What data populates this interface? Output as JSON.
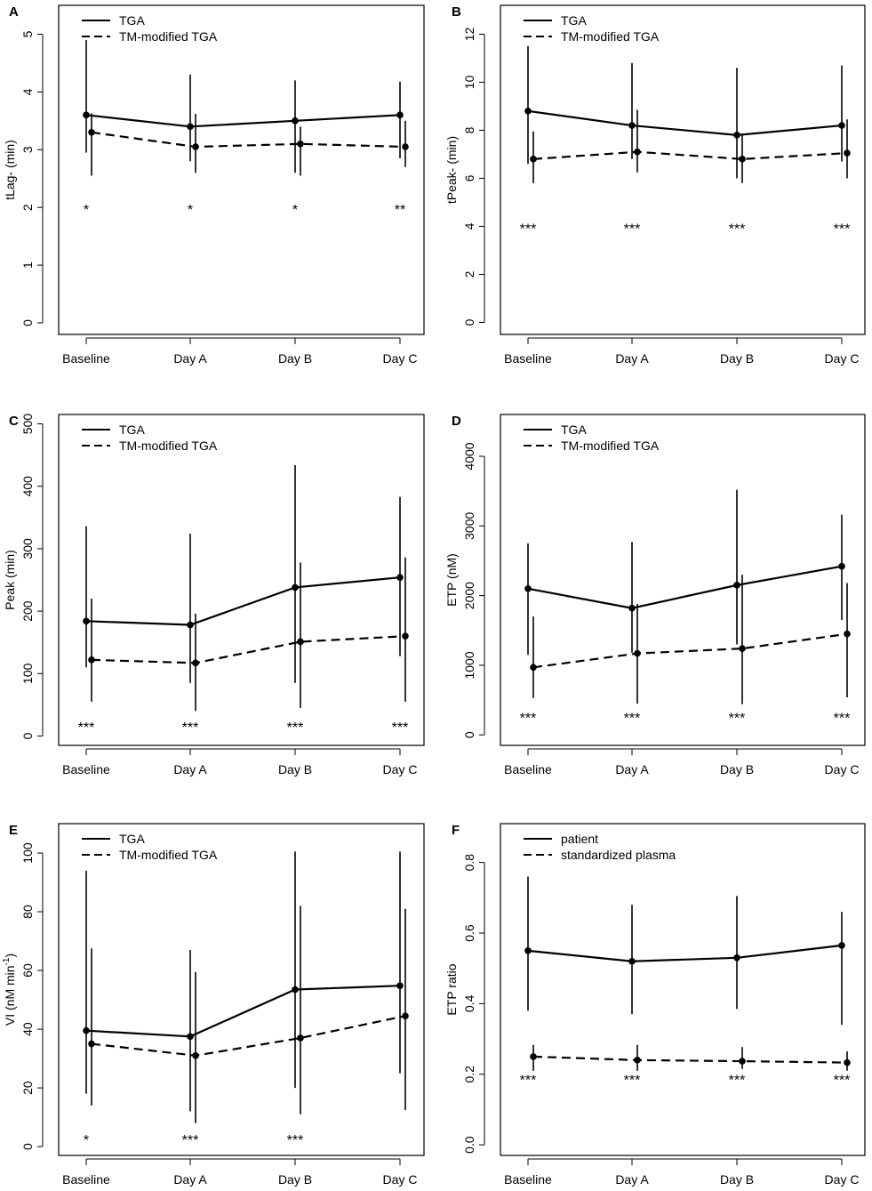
{
  "chart_data": [
    {
      "panel_label": "A",
      "type": "line",
      "ylabel": "tLag- (min)",
      "categories": [
        "Baseline",
        "Day A",
        "Day B",
        "Day C"
      ],
      "ylim": [
        -0.2,
        5.5
      ],
      "yticks": [
        "0",
        "1",
        "2",
        "3",
        "4",
        "5"
      ],
      "legend_position": "top-left",
      "series": [
        {
          "name": "TGA",
          "dash": "solid",
          "values": [
            3.6,
            3.4,
            3.5,
            3.6
          ],
          "lower": [
            2.95,
            2.8,
            2.6,
            2.85
          ],
          "upper": [
            4.9,
            4.3,
            4.2,
            4.18
          ]
        },
        {
          "name": "TM-modified TGA",
          "dash": "dashed",
          "values": [
            3.3,
            3.05,
            3.1,
            3.05
          ],
          "lower": [
            2.55,
            2.6,
            2.55,
            2.7
          ],
          "upper": [
            3.63,
            3.62,
            3.4,
            3.5
          ]
        }
      ],
      "significance": [
        "*",
        "*",
        "*",
        "**"
      ],
      "significance_y": 2.0
    },
    {
      "panel_label": "B",
      "type": "line",
      "ylabel": "tPeak- (min)",
      "categories": [
        "Baseline",
        "Day A",
        "Day B",
        "Day C"
      ],
      "ylim": [
        -0.5,
        13.2
      ],
      "yticks": [
        "0",
        "2",
        "4",
        "6",
        "8",
        "10",
        "12"
      ],
      "legend_position": "top-left",
      "series": [
        {
          "name": "TGA",
          "dash": "solid",
          "values": [
            8.8,
            8.2,
            7.8,
            8.2
          ],
          "lower": [
            6.6,
            6.8,
            6.0,
            6.7
          ],
          "upper": [
            11.5,
            10.8,
            10.6,
            10.7
          ]
        },
        {
          "name": "TM-modified TGA",
          "dash": "dashed",
          "values": [
            6.8,
            7.1,
            6.8,
            7.05
          ],
          "lower": [
            5.8,
            6.25,
            5.8,
            6.0
          ],
          "upper": [
            7.95,
            8.85,
            7.8,
            8.45
          ]
        }
      ],
      "significance": [
        "***",
        "***",
        "***",
        "***"
      ],
      "significance_y": 4.0
    },
    {
      "panel_label": "C",
      "type": "line",
      "ylabel": "Peak (min)",
      "categories": [
        "Baseline",
        "Day A",
        "Day B",
        "Day C"
      ],
      "ylim": [
        -15,
        515
      ],
      "yticks": [
        "0",
        "100",
        "200",
        "300",
        "400",
        "500"
      ],
      "legend_position": "top-left",
      "series": [
        {
          "name": "TGA",
          "dash": "solid",
          "values": [
            184,
            178,
            238,
            254
          ],
          "lower": [
            110,
            85,
            85,
            128
          ],
          "upper": [
            336,
            324,
            434,
            383
          ]
        },
        {
          "name": "TM-modified TGA",
          "dash": "dashed",
          "values": [
            122,
            117,
            151,
            160
          ],
          "lower": [
            55,
            40,
            45,
            55
          ],
          "upper": [
            220,
            196,
            278,
            286
          ]
        }
      ],
      "significance": [
        "***",
        "***",
        "***",
        "***"
      ],
      "significance_y": 18
    },
    {
      "panel_label": "D",
      "type": "line",
      "ylabel": "ETP (nM)",
      "categories": [
        "Baseline",
        "Day A",
        "Day B",
        "Day C"
      ],
      "ylim": [
        -150,
        4600
      ],
      "yticks": [
        "0",
        "1000",
        "2000",
        "3000",
        "4000"
      ],
      "legend_position": "top-left",
      "series": [
        {
          "name": "TGA",
          "dash": "solid",
          "values": [
            2100,
            1820,
            2150,
            2420
          ],
          "lower": [
            1150,
            1180,
            1300,
            1650
          ],
          "upper": [
            2750,
            2770,
            3520,
            3160
          ]
        },
        {
          "name": "TM-modified TGA",
          "dash": "dashed",
          "values": [
            970,
            1170,
            1240,
            1450
          ],
          "lower": [
            530,
            450,
            440,
            540
          ],
          "upper": [
            1700,
            1880,
            2300,
            2180
          ]
        }
      ],
      "significance": [
        "***",
        "***",
        "***",
        "***"
      ],
      "significance_y": 280
    },
    {
      "panel_label": "E",
      "type": "line",
      "ylabel": "VI (nM min",
      "ylabel_sup": "-1",
      "ylabel_close": ")",
      "categories": [
        "Baseline",
        "Day A",
        "Day B",
        "Day C"
      ],
      "ylim": [
        -3,
        110
      ],
      "yticks": [
        "0",
        "20",
        "40",
        "60",
        "80",
        "100"
      ],
      "legend_position": "top-left",
      "series": [
        {
          "name": "TGA",
          "dash": "solid",
          "values": [
            39.5,
            37.5,
            53.5,
            54.8
          ],
          "lower": [
            18,
            12,
            20,
            25
          ],
          "upper": [
            94,
            67,
            100.5,
            100.5
          ]
        },
        {
          "name": "TM-modified TGA",
          "dash": "dashed",
          "values": [
            35,
            31,
            37,
            44.5
          ],
          "lower": [
            14,
            8,
            11,
            12.5
          ],
          "upper": [
            67.5,
            59.5,
            82,
            81
          ]
        }
      ],
      "significance": [
        "*",
        "***",
        "***",
        ""
      ],
      "significance_y": 3
    },
    {
      "panel_label": "F",
      "type": "line",
      "ylabel": "ETP ratio",
      "categories": [
        "Baseline",
        "Day A",
        "Day B",
        "Day C"
      ],
      "ylim": [
        -0.03,
        0.91
      ],
      "yticks": [
        "0.0",
        "0.2",
        "0.4",
        "0.6",
        "0.8"
      ],
      "legend_position": "top-left",
      "series": [
        {
          "name": "patient",
          "dash": "solid",
          "values": [
            0.55,
            0.52,
            0.53,
            0.565
          ],
          "lower": [
            0.38,
            0.37,
            0.385,
            0.34
          ],
          "upper": [
            0.76,
            0.68,
            0.705,
            0.66
          ]
        },
        {
          "name": "standardized plasma",
          "dash": "dashed",
          "values": [
            0.25,
            0.24,
            0.237,
            0.233
          ],
          "lower": [
            0.21,
            0.21,
            0.215,
            0.21
          ],
          "upper": [
            0.283,
            0.283,
            0.277,
            0.265
          ]
        }
      ],
      "significance": [
        "***",
        "***",
        "***",
        "***"
      ],
      "significance_y": 0.19
    }
  ]
}
